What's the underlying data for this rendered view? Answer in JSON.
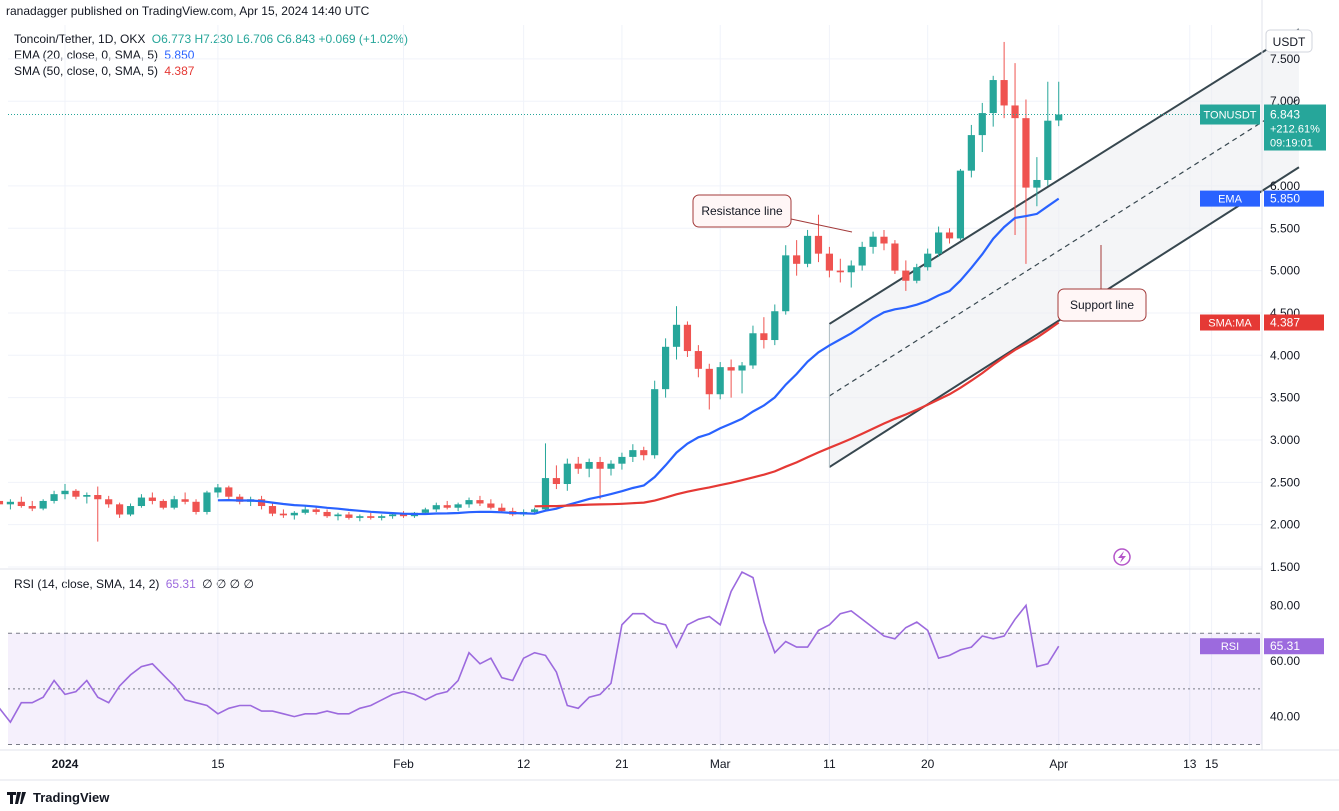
{
  "header": {
    "published": "ranadagger published on TradingView.com, Apr 15, 2024 14:40 UTC"
  },
  "legend": {
    "symbol": "Toncoin/Tether, 1D, OKX",
    "ohlc": "O6.773 H7.230 L6.706 C6.843 +0.069 (+1.02%)",
    "ema_label": "EMA (20, close, 0, SMA, 5)",
    "ema_value": "5.850",
    "sma_label": "SMA (50, close, 0, SMA, 5)",
    "sma_value": "4.387",
    "rsi_label": "RSI (14, close, SMA, 14, 2)",
    "rsi_value": "65.31",
    "rsi_extra": "∅ ∅ ∅ ∅"
  },
  "footer": {
    "brand": "TradingView"
  },
  "colors": {
    "up": "#26a69a",
    "down": "#ef5350",
    "ema": "#2962ff",
    "sma": "#e53935",
    "rsi": "#9c6ade",
    "channel": "#37474f"
  },
  "icons": {
    "brand": "tradingview-logo-icon",
    "flash": "lightning-icon"
  },
  "chart_data": [
    {
      "type": "candlestick",
      "title": "Toncoin/Tether, 1D, OKX",
      "currency": "USDT",
      "ylim": [
        1.5,
        7.9
      ],
      "y_ticks": [
        "1.500",
        "2.000",
        "2.500",
        "3.000",
        "3.500",
        "4.000",
        "4.500",
        "5.000",
        "5.500",
        "6.000",
        "7.000",
        "7.500"
      ],
      "x_ticks": [
        {
          "label": "2024",
          "i": 0
        },
        {
          "label": "15",
          "i": 14
        },
        {
          "label": "Feb",
          "i": 31
        },
        {
          "label": "12",
          "i": 42
        },
        {
          "label": "21",
          "i": 51
        },
        {
          "label": "Mar",
          "i": 60
        },
        {
          "label": "11",
          "i": 70
        },
        {
          "label": "20",
          "i": 79
        },
        {
          "label": "Apr",
          "i": 91
        },
        {
          "label": "13",
          "i": 103
        },
        {
          "label": "15",
          "i": 105
        }
      ],
      "start_offset": -6,
      "candles": [
        [
          2.28,
          2.35,
          2.2,
          2.24
        ],
        [
          2.24,
          2.3,
          2.18,
          2.27
        ],
        [
          2.27,
          2.33,
          2.2,
          2.22
        ],
        [
          2.22,
          2.28,
          2.16,
          2.19
        ],
        [
          2.19,
          2.3,
          2.17,
          2.28
        ],
        [
          2.28,
          2.4,
          2.25,
          2.36
        ],
        [
          2.36,
          2.48,
          2.3,
          2.4
        ],
        [
          2.4,
          2.42,
          2.3,
          2.33
        ],
        [
          2.33,
          2.38,
          2.25,
          2.35
        ],
        [
          2.35,
          2.45,
          1.8,
          2.3
        ],
        [
          2.3,
          2.34,
          2.2,
          2.24
        ],
        [
          2.24,
          2.26,
          2.08,
          2.12
        ],
        [
          2.12,
          2.25,
          2.1,
          2.22
        ],
        [
          2.22,
          2.36,
          2.2,
          2.32
        ],
        [
          2.32,
          2.38,
          2.24,
          2.28
        ],
        [
          2.28,
          2.3,
          2.18,
          2.2
        ],
        [
          2.2,
          2.34,
          2.18,
          2.3
        ],
        [
          2.3,
          2.38,
          2.24,
          2.27
        ],
        [
          2.27,
          2.3,
          2.12,
          2.15
        ],
        [
          2.15,
          2.4,
          2.12,
          2.38
        ],
        [
          2.38,
          2.48,
          2.32,
          2.44
        ],
        [
          2.44,
          2.46,
          2.3,
          2.33
        ],
        [
          2.33,
          2.36,
          2.24,
          2.27
        ],
        [
          2.27,
          2.33,
          2.22,
          2.3
        ],
        [
          2.3,
          2.34,
          2.18,
          2.22
        ],
        [
          2.22,
          2.26,
          2.1,
          2.13
        ],
        [
          2.13,
          2.18,
          2.08,
          2.11
        ],
        [
          2.11,
          2.16,
          2.06,
          2.14
        ],
        [
          2.14,
          2.22,
          2.12,
          2.18
        ],
        [
          2.18,
          2.22,
          2.12,
          2.15
        ],
        [
          2.15,
          2.18,
          2.08,
          2.1
        ],
        [
          2.1,
          2.14,
          2.05,
          2.12
        ],
        [
          2.12,
          2.15,
          2.06,
          2.08
        ],
        [
          2.08,
          2.12,
          2.04,
          2.1
        ],
        [
          2.1,
          2.14,
          2.06,
          2.08
        ],
        [
          2.08,
          2.12,
          2.05,
          2.1
        ],
        [
          2.1,
          2.14,
          2.07,
          2.12
        ],
        [
          2.12,
          2.16,
          2.08,
          2.1
        ],
        [
          2.1,
          2.15,
          2.08,
          2.14
        ],
        [
          2.14,
          2.2,
          2.12,
          2.18
        ],
        [
          2.18,
          2.26,
          2.15,
          2.23
        ],
        [
          2.23,
          2.28,
          2.18,
          2.2
        ],
        [
          2.2,
          2.26,
          2.16,
          2.24
        ],
        [
          2.24,
          2.32,
          2.2,
          2.29
        ],
        [
          2.29,
          2.34,
          2.22,
          2.25
        ],
        [
          2.25,
          2.3,
          2.18,
          2.2
        ],
        [
          2.2,
          2.25,
          2.14,
          2.16
        ],
        [
          2.16,
          2.2,
          2.1,
          2.12
        ],
        [
          2.12,
          2.18,
          2.1,
          2.15
        ],
        [
          2.15,
          2.2,
          2.12,
          2.18
        ],
        [
          2.18,
          2.96,
          2.16,
          2.55
        ],
        [
          2.55,
          2.7,
          2.42,
          2.48
        ],
        [
          2.48,
          2.78,
          2.4,
          2.72
        ],
        [
          2.72,
          2.8,
          2.6,
          2.66
        ],
        [
          2.66,
          2.78,
          2.56,
          2.74
        ],
        [
          2.74,
          2.8,
          2.3,
          2.66
        ],
        [
          2.66,
          2.76,
          2.58,
          2.72
        ],
        [
          2.72,
          2.85,
          2.65,
          2.8
        ],
        [
          2.8,
          2.95,
          2.74,
          2.88
        ],
        [
          2.88,
          2.92,
          2.76,
          2.82
        ],
        [
          2.82,
          3.7,
          2.78,
          3.6
        ],
        [
          3.6,
          4.2,
          3.5,
          4.1
        ],
        [
          4.1,
          4.58,
          3.95,
          4.36
        ],
        [
          4.36,
          4.4,
          3.98,
          4.05
        ],
        [
          4.05,
          4.12,
          3.74,
          3.84
        ],
        [
          3.84,
          3.9,
          3.36,
          3.54
        ],
        [
          3.54,
          3.92,
          3.48,
          3.86
        ],
        [
          3.86,
          3.95,
          3.5,
          3.82
        ],
        [
          3.82,
          3.92,
          3.55,
          3.88
        ],
        [
          3.88,
          4.35,
          3.84,
          4.26
        ],
        [
          4.26,
          4.45,
          4.08,
          4.18
        ],
        [
          4.18,
          4.6,
          4.12,
          4.52
        ],
        [
          4.52,
          5.3,
          4.48,
          5.18
        ],
        [
          5.18,
          5.36,
          4.94,
          5.08
        ],
        [
          5.08,
          5.48,
          5.04,
          5.41
        ],
        [
          5.41,
          5.66,
          5.1,
          5.2
        ],
        [
          5.2,
          5.28,
          4.92,
          5.0
        ],
        [
          5.0,
          5.14,
          4.86,
          4.98
        ],
        [
          4.98,
          5.12,
          4.8,
          5.06
        ],
        [
          5.06,
          5.34,
          5.0,
          5.28
        ],
        [
          5.28,
          5.46,
          5.2,
          5.4
        ],
        [
          5.4,
          5.48,
          5.24,
          5.32
        ],
        [
          5.32,
          5.36,
          4.96,
          5.0
        ],
        [
          5.0,
          5.12,
          4.76,
          4.88
        ],
        [
          4.88,
          5.08,
          4.85,
          5.04
        ],
        [
          5.04,
          5.26,
          5.0,
          5.2
        ],
        [
          5.2,
          5.52,
          5.16,
          5.45
        ],
        [
          5.45,
          5.5,
          5.32,
          5.38
        ],
        [
          5.38,
          6.2,
          5.36,
          6.18
        ],
        [
          6.18,
          6.72,
          6.1,
          6.6
        ],
        [
          6.6,
          6.98,
          6.4,
          6.86
        ],
        [
          6.86,
          7.3,
          6.7,
          7.25
        ],
        [
          7.25,
          7.7,
          6.8,
          6.95
        ],
        [
          6.95,
          7.45,
          5.42,
          6.8
        ],
        [
          6.8,
          7.02,
          5.08,
          5.98
        ],
        [
          5.98,
          6.34,
          5.76,
          6.07
        ],
        [
          6.07,
          7.23,
          6.0,
          6.77
        ],
        [
          6.773,
          7.23,
          6.706,
          6.843
        ]
      ],
      "ema": {
        "name": "EMA (20, close, 0, SMA, 5)",
        "last": 5.85
      },
      "sma": {
        "name": "SMA (50, close, 0, SMA, 5)",
        "last": 4.387
      },
      "last_price": {
        "symbol": "TONUSDT",
        "value": "6.843",
        "change": "+212.61%",
        "countdown": "09:19:01"
      },
      "ema_tag": {
        "label": "EMA",
        "value": "5.850"
      },
      "sma_tag": {
        "label": "SMA:MA",
        "value": "4.387"
      },
      "channel": {
        "upper": [
          [
            70,
            4.37
          ],
          [
            113,
            7.85
          ]
        ],
        "lower": [
          [
            70,
            2.68
          ],
          [
            113,
            6.22
          ]
        ],
        "mid": [
          [
            70,
            3.52
          ],
          [
            113,
            7.03
          ]
        ]
      },
      "annotations": [
        {
          "text": "Resistance line"
        },
        {
          "text": "Support line"
        }
      ]
    },
    {
      "type": "line",
      "title": "RSI (14, close, SMA, 14, 2)",
      "ylim": [
        28,
        92
      ],
      "y_ticks": [
        "40.00",
        "60.00",
        "80.00"
      ],
      "bands": [
        30,
        50,
        70
      ],
      "values": [
        49,
        46,
        45,
        48,
        54,
        59,
        56,
        57,
        53,
        47,
        43,
        38,
        45,
        45,
        47,
        53,
        48,
        49,
        53,
        47,
        45,
        51,
        55,
        58,
        59,
        55,
        51,
        46,
        45,
        44,
        41,
        43,
        44,
        44,
        42,
        42,
        41,
        40,
        41,
        41,
        42,
        41,
        41,
        43,
        44,
        46,
        48,
        49,
        48,
        46,
        48,
        49,
        53,
        63,
        59,
        61,
        54,
        53,
        61,
        63,
        62,
        56,
        44,
        43,
        47,
        48,
        52,
        73,
        77,
        77,
        74,
        73,
        65,
        73,
        75,
        76,
        73,
        85,
        92,
        90,
        74,
        63,
        67,
        65,
        65,
        71,
        73,
        77,
        78,
        75,
        72,
        69,
        68,
        72,
        74,
        71,
        61,
        62,
        64,
        65,
        69,
        68,
        69,
        75,
        80,
        58,
        59,
        65.31
      ],
      "last": {
        "label": "RSI",
        "value": "65.31"
      }
    }
  ]
}
